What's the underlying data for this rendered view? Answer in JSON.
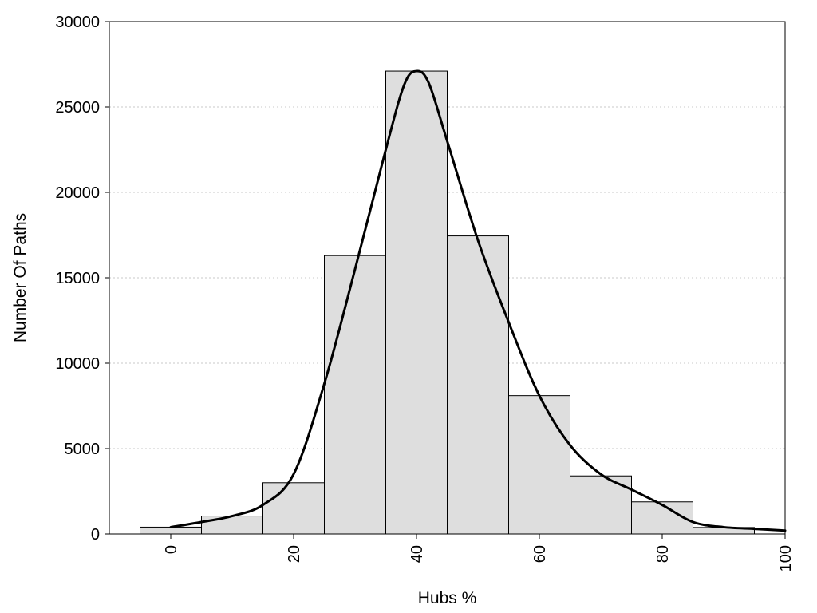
{
  "chart_data": {
    "type": "bar",
    "title": "",
    "xlabel": "Hubs %",
    "ylabel": "Number Of Paths",
    "xlim": [
      -10,
      100
    ],
    "ylim": [
      0,
      30000
    ],
    "bin_width": 10,
    "grid": "horizontal-dotted",
    "x_ticks": [
      "0",
      "20",
      "40",
      "60",
      "80",
      "100"
    ],
    "x_tick_values": [
      0,
      20,
      40,
      60,
      80,
      100
    ],
    "y_ticks": [
      "0",
      "5000",
      "10000",
      "15000",
      "20000",
      "25000",
      "30000"
    ],
    "y_tick_values": [
      0,
      5000,
      10000,
      15000,
      20000,
      25000,
      30000
    ],
    "bins": [
      {
        "center": 0,
        "value": 400
      },
      {
        "center": 10,
        "value": 1050
      },
      {
        "center": 20,
        "value": 3000
      },
      {
        "center": 30,
        "value": 16300
      },
      {
        "center": 40,
        "value": 27100
      },
      {
        "center": 50,
        "value": 17450
      },
      {
        "center": 60,
        "value": 8100
      },
      {
        "center": 70,
        "value": 3400
      },
      {
        "center": 80,
        "value": 1880
      },
      {
        "center": 90,
        "value": 380
      }
    ],
    "density_curve": {
      "x": [
        0,
        5,
        10,
        15,
        20,
        25,
        30,
        35,
        38,
        40,
        42,
        45,
        50,
        55,
        60,
        65,
        70,
        75,
        80,
        85,
        90,
        95,
        100
      ],
      "y": [
        400,
        700,
        1050,
        1700,
        3500,
        8800,
        15500,
        22500,
        26300,
        27100,
        26400,
        23000,
        17200,
        12400,
        8100,
        5200,
        3500,
        2600,
        1700,
        700,
        400,
        300,
        200
      ]
    },
    "colors": {
      "bar_fill": "#dedede",
      "bar_stroke": "#000000",
      "curve": "#000000"
    }
  }
}
